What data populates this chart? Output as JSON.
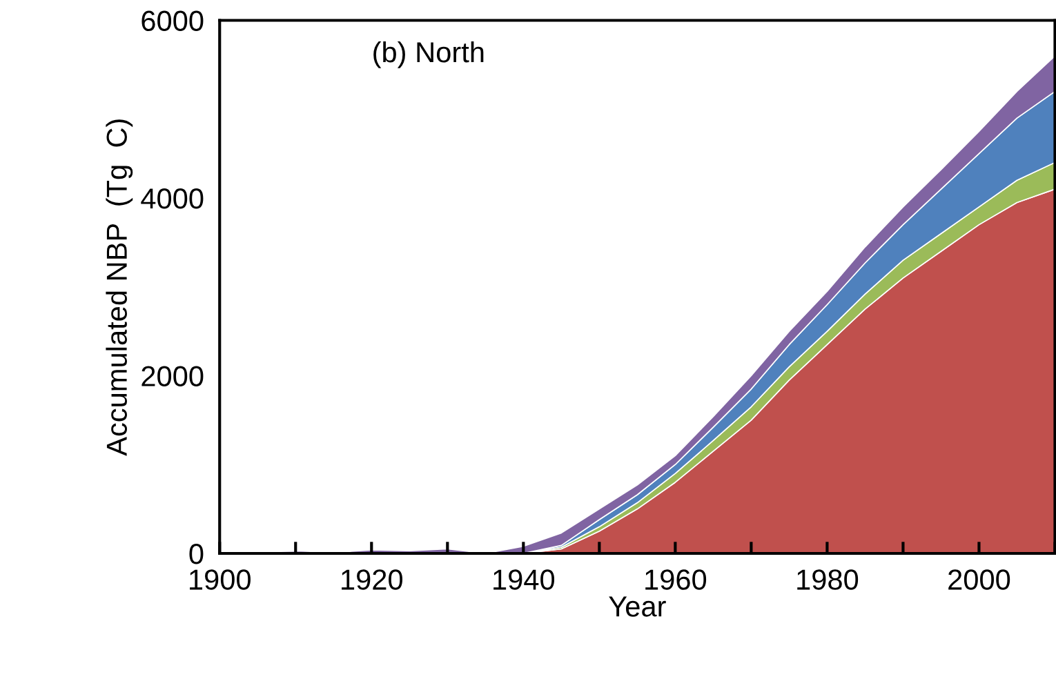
{
  "chart_data": {
    "type": "area",
    "title": "(b) North",
    "xlabel": "Year",
    "ylabel": "Accumulated NBP  (Tg  C)",
    "stacked": true,
    "grid": false,
    "legend": false,
    "x": [
      1900,
      1905,
      1910,
      1915,
      1920,
      1925,
      1930,
      1935,
      1940,
      1945,
      1950,
      1955,
      1960,
      1965,
      1970,
      1975,
      1980,
      1985,
      1990,
      1995,
      2000,
      2005,
      2010
    ],
    "series": [
      {
        "color": "#c0504d",
        "values": [
          0,
          0,
          0,
          0,
          0,
          0,
          0,
          0,
          0,
          50,
          250,
          500,
          800,
          1150,
          1500,
          1950,
          2350,
          2750,
          3100,
          3400,
          3700,
          3950,
          4100
        ]
      },
      {
        "color": "#9bbb59",
        "values": [
          0,
          20,
          10,
          0,
          0,
          0,
          0,
          0,
          0,
          20,
          50,
          70,
          100,
          120,
          150,
          150,
          150,
          170,
          200,
          200,
          200,
          250,
          300
        ]
      },
      {
        "color": "#4f81bd",
        "values": [
          0,
          0,
          0,
          0,
          0,
          0,
          0,
          0,
          0,
          20,
          80,
          90,
          100,
          150,
          200,
          250,
          300,
          350,
          400,
          500,
          600,
          700,
          800
        ]
      },
      {
        "color": "#8064a2",
        "values": [
          0,
          0,
          20,
          10,
          40,
          30,
          50,
          0,
          80,
          140,
          120,
          110,
          100,
          120,
          150,
          150,
          150,
          180,
          200,
          220,
          250,
          300,
          400
        ]
      }
    ],
    "xlim": [
      1900,
      2010
    ],
    "ylim": [
      0,
      6000
    ],
    "xticks": [
      1900,
      {
        "value": 1910,
        "label": null
      },
      1920,
      {
        "value": 1930,
        "label": null
      },
      1940,
      {
        "value": 1950,
        "label": null
      },
      1960,
      {
        "value": 1970,
        "label": null
      },
      1980,
      {
        "value": 1990,
        "label": null
      },
      2000,
      {
        "value": 2010,
        "label": null
      }
    ],
    "yticks": [
      0,
      2000,
      4000,
      6000
    ]
  }
}
